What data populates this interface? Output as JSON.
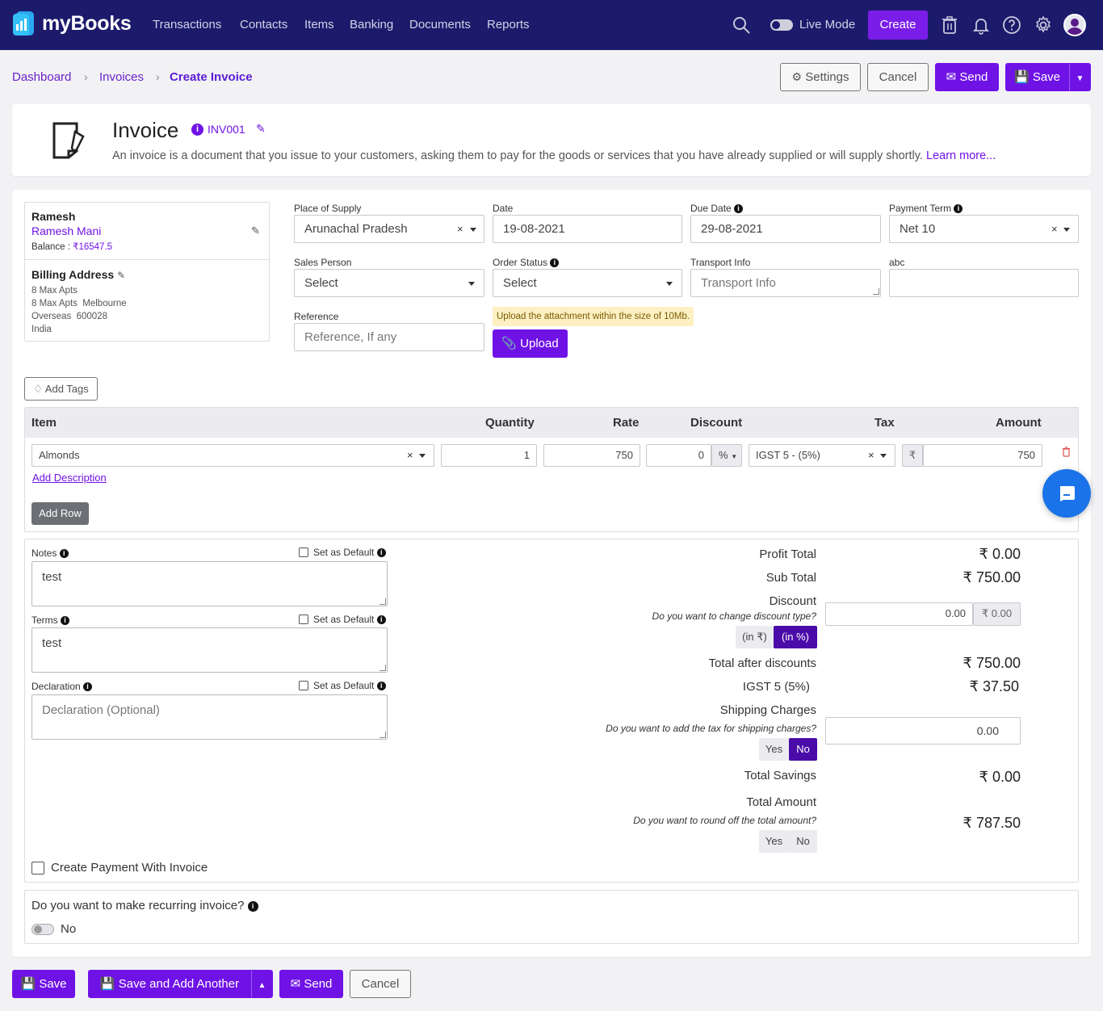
{
  "nav": {
    "brand": "myBooks",
    "links": [
      "Transactions",
      "Contacts",
      "Items",
      "Banking",
      "Documents",
      "Reports"
    ],
    "live_mode": "Live Mode",
    "create": "Create"
  },
  "breadcrumb": {
    "dashboard": "Dashboard",
    "invoices": "Invoices",
    "current": "Create Invoice"
  },
  "header_actions": {
    "settings": "Settings",
    "cancel": "Cancel",
    "send": "Send",
    "save": "Save"
  },
  "intro": {
    "title": "Invoice",
    "number": "INV001",
    "description": "An invoice is a document that you issue to your customers, asking them to pay for the goods or services that you have already supplied or will supply shortly.",
    "learn_more": "Learn more..."
  },
  "customer": {
    "name": "Ramesh",
    "full_name": "Ramesh Mani",
    "balance_label": "Balance :",
    "balance": "₹16547.5",
    "billing_title": "Billing Address",
    "address": [
      "8 Max Apts",
      "8 Max Apts  Melbourne",
      "Overseas  600028",
      "India"
    ]
  },
  "form": {
    "place_of_supply": {
      "label": "Place of Supply",
      "value": "Arunachal Pradesh"
    },
    "date": {
      "label": "Date",
      "value": "19-08-2021"
    },
    "due_date": {
      "label": "Due Date",
      "value": "29-08-2021"
    },
    "payment_term": {
      "label": "Payment Term",
      "value": "Net 10"
    },
    "sales_person": {
      "label": "Sales Person",
      "value": "Select"
    },
    "order_status": {
      "label": "Order Status",
      "value": "Select"
    },
    "transport_info": {
      "label": "Transport Info",
      "placeholder": "Transport Info"
    },
    "abc": {
      "label": "abc",
      "value": ""
    },
    "reference": {
      "label": "Reference",
      "placeholder": "Reference, If any"
    },
    "upload_note": "Upload the attachment within the size of 10Mb.",
    "upload": "Upload",
    "add_tags": "Add Tags"
  },
  "items": {
    "headers": {
      "item": "Item",
      "quantity": "Quantity",
      "rate": "Rate",
      "discount": "Discount",
      "tax": "Tax",
      "amount": "Amount"
    },
    "row": {
      "item": "Almonds",
      "quantity": "1",
      "rate": "750",
      "discount": "0",
      "discount_type": "%",
      "tax": "IGST 5 - (5%)",
      "currency": "₹",
      "amount": "750"
    },
    "add_description": "Add Description",
    "add_row": "Add Row"
  },
  "notes": {
    "notes_label": "Notes",
    "notes_value": "test",
    "terms_label": "Terms",
    "terms_value": "test",
    "declaration_label": "Declaration",
    "declaration_placeholder": "Declaration (Optional)",
    "set_default": "Set as Default"
  },
  "totals": {
    "profit_total": {
      "label": "Profit Total",
      "value": "₹ 0.00"
    },
    "sub_total": {
      "label": "Sub Total",
      "value": "₹ 750.00"
    },
    "discount": {
      "label": "Discount",
      "question": "Do you want to change discount type?",
      "input": "0.00",
      "currency": "₹",
      "computed": "0.00",
      "opt_rupee": "(in ₹)",
      "opt_percent": "(in %)"
    },
    "total_after_discounts": {
      "label": "Total after discounts",
      "value": "₹ 750.00"
    },
    "igst": {
      "label": "IGST 5 (5%)",
      "value": "₹ 37.50"
    },
    "shipping": {
      "label": "Shipping Charges",
      "question": "Do you want to add the tax for shipping charges?",
      "input": "0.00",
      "yes": "Yes",
      "no": "No"
    },
    "total_savings": {
      "label": "Total Savings",
      "value": "₹ 0.00"
    },
    "total_amount": {
      "label": "Total Amount",
      "question": "Do you want to round off the total amount?",
      "value": "₹ 787.50",
      "yes": "Yes",
      "no": "No"
    }
  },
  "create_payment": "Create Payment With Invoice",
  "recurring": {
    "question": "Do you want to make recurring invoice?",
    "state": "No"
  },
  "footer": {
    "save": "Save",
    "save_add": "Save and Add Another",
    "send": "Send",
    "cancel": "Cancel"
  },
  "colors": {
    "nav_bg": "#1c1a6b",
    "primary": "#6f12e6",
    "chat": "#1a73e8"
  }
}
